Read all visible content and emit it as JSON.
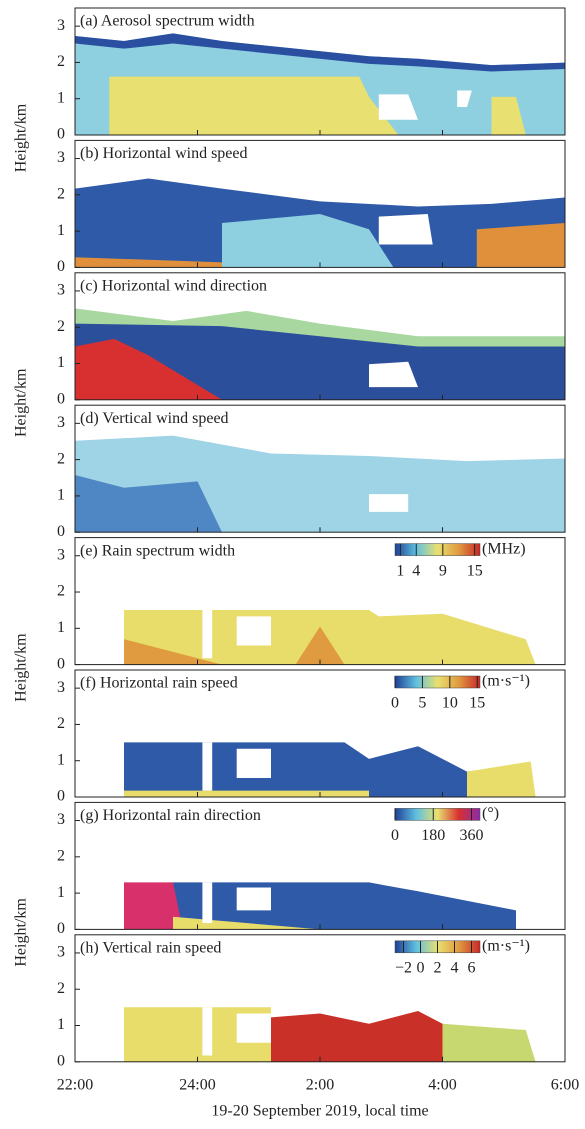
{
  "chart_data": [
    {
      "type": "heatmap",
      "title": "(a) Aerosol spectrum width",
      "ylabel": "Height/km",
      "ylim": [
        0,
        3.5
      ],
      "yticks": [
        0,
        1,
        2,
        3
      ]
    },
    {
      "type": "heatmap",
      "title": "(b) Horizontal wind speed",
      "ylim": [
        0,
        3.5
      ],
      "yticks": [
        0,
        1,
        2,
        3
      ]
    },
    {
      "type": "heatmap",
      "title": "(c) Horizontal wind direction",
      "ylabel": "Height/km",
      "ylim": [
        0,
        3.5
      ],
      "yticks": [
        0,
        1,
        2,
        3
      ]
    },
    {
      "type": "heatmap",
      "title": "(d) Vertical wind speed",
      "ylim": [
        0,
        3.5
      ],
      "yticks": [
        0,
        1,
        2,
        3
      ]
    },
    {
      "type": "heatmap",
      "title": "(e) Rain spectrum width",
      "ylabel": "Height/km",
      "ylim": [
        0,
        3.5
      ],
      "yticks": [
        0,
        1,
        2,
        3
      ],
      "colorbar": {
        "unit": "(MHz)",
        "clim": [
          0,
          16
        ],
        "ticks": [
          1,
          4,
          9,
          15
        ],
        "colors": [
          "#1f3f95",
          "#5fc0e0",
          "#e8e070",
          "#e09a40",
          "#c82828"
        ]
      }
    },
    {
      "type": "heatmap",
      "title": "(f) Horizontal rain speed",
      "ylim": [
        0,
        3.5
      ],
      "yticks": [
        0,
        1,
        2,
        3
      ],
      "colorbar": {
        "unit": "(m·s⁻¹)",
        "clim": [
          0,
          15.5
        ],
        "ticks": [
          0,
          5,
          10,
          15
        ],
        "colors": [
          "#1f3f95",
          "#5fc0e0",
          "#e8e070",
          "#e09a40",
          "#c82828"
        ]
      }
    },
    {
      "type": "heatmap",
      "title": "(g) Horizontal rain direction",
      "ylabel": "Height/km",
      "ylim": [
        0,
        3.5
      ],
      "yticks": [
        0,
        1,
        2,
        3
      ],
      "colorbar": {
        "unit": "(°)",
        "clim": [
          0,
          400
        ],
        "ticks": [
          0,
          180,
          360
        ],
        "colors": [
          "#1f3f95",
          "#5fc0e0",
          "#e8e070",
          "#d83030",
          "#8a2ca8"
        ]
      }
    },
    {
      "type": "heatmap",
      "title": "(h) Vertical rain speed",
      "ylim": [
        0,
        3.5
      ],
      "yticks": [
        0,
        1,
        2,
        3
      ],
      "colorbar": {
        "unit": "(m·s⁻¹)",
        "clim": [
          -3,
          7
        ],
        "ticks": [
          {
            "value": -2,
            "label": "−2"
          },
          0,
          2,
          4,
          6
        ],
        "colors": [
          "#1f3f95",
          "#5fc0e0",
          "#e8e070",
          "#e09a40",
          "#c82828"
        ]
      }
    }
  ],
  "x_axis": {
    "xlabel": "19-20 September 2019, local time",
    "xlim": [
      22,
      30
    ],
    "xticks": [
      {
        "value": 22,
        "label": "22:00"
      },
      {
        "value": 24,
        "label": "24:00"
      },
      {
        "value": 26,
        "label": "2:00"
      },
      {
        "value": 28,
        "label": "4:00"
      },
      {
        "value": 30,
        "label": "6:00"
      }
    ]
  }
}
